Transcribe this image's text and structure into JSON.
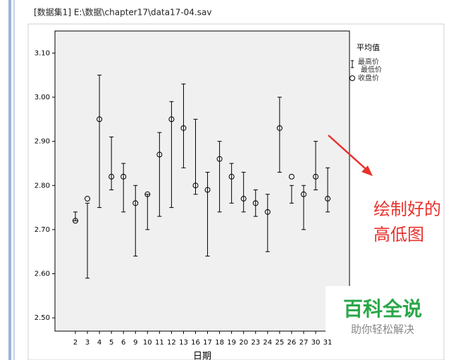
{
  "header": "[数据集1] E:\\数据\\chapter17\\data17-04.sav",
  "chart_data": {
    "type": "hilo",
    "x_label": "日期",
    "legend_title": "平均值",
    "categories": [
      "2",
      "3",
      "4",
      "5",
      "6",
      "9",
      "10",
      "11",
      "12",
      "13",
      "16",
      "17",
      "18",
      "19",
      "20",
      "23",
      "24",
      "25",
      "26",
      "27",
      "30",
      "31"
    ],
    "series": [
      {
        "name": "最高价",
        "color": "#000000",
        "values": [
          2.74,
          2.76,
          3.05,
          2.91,
          2.85,
          2.8,
          2.78,
          2.92,
          2.99,
          3.03,
          2.95,
          2.83,
          2.9,
          2.85,
          2.83,
          2.79,
          2.78,
          3.0,
          2.8,
          2.8,
          2.9,
          2.84
        ]
      },
      {
        "name": "最低价",
        "color": "#000000",
        "values": [
          2.72,
          2.59,
          2.75,
          2.79,
          2.74,
          2.64,
          2.7,
          2.73,
          2.75,
          2.84,
          2.78,
          2.64,
          2.74,
          2.76,
          2.74,
          2.73,
          2.65,
          2.83,
          2.76,
          2.7,
          2.79,
          2.74
        ]
      },
      {
        "name": "收盘价",
        "color": "#000000",
        "values": [
          2.72,
          2.77,
          2.95,
          2.82,
          2.82,
          2.76,
          2.78,
          2.87,
          2.95,
          2.93,
          2.8,
          2.79,
          2.86,
          2.82,
          2.77,
          2.76,
          2.74,
          2.93,
          2.82,
          2.78,
          2.82,
          2.77
        ]
      }
    ],
    "ylim": [
      2.47,
      3.15
    ],
    "yticks": [
      {
        "value": 2.5,
        "label": "2.50"
      },
      {
        "value": 2.6,
        "label": "2.60"
      },
      {
        "value": 2.7,
        "label": "2.70"
      },
      {
        "value": 2.8,
        "label": "2.80"
      },
      {
        "value": 2.9,
        "label": "2.90"
      },
      {
        "value": 3.0,
        "label": "3.00"
      },
      {
        "value": 3.1,
        "label": "3.10"
      }
    ],
    "annotations": [
      "绘制好的",
      "高低图"
    ],
    "annotation_color": "#e8322d",
    "plot_background": "#f0f0f0"
  },
  "watermark": {
    "title": "百科全说",
    "subtitle": "助你轻松解决"
  }
}
